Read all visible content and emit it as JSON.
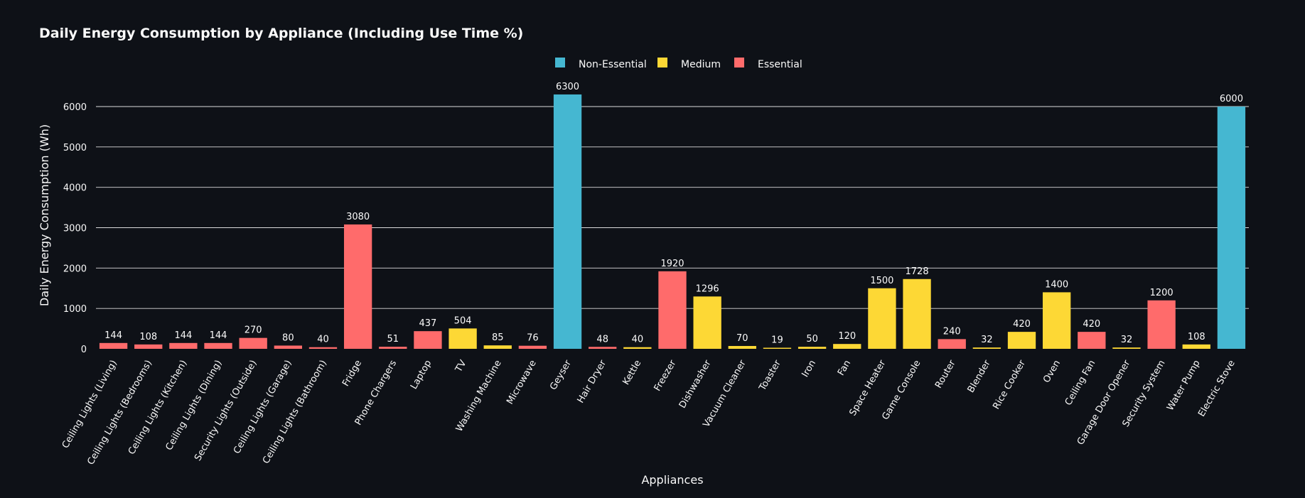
{
  "chart_data": {
    "type": "bar",
    "title": "Daily Energy Consumption by Appliance (Including Use Time %)",
    "xlabel": "Appliances",
    "ylabel": "Daily Energy Consumption (Wh)",
    "ylim": [
      0,
      6500
    ],
    "yticks": [
      0,
      1000,
      2000,
      3000,
      4000,
      5000,
      6000
    ],
    "grid": true,
    "legend_position": "top-center",
    "legend": [
      {
        "name": "Non-Essential",
        "color": "#45b7d1"
      },
      {
        "name": "Medium",
        "color": "#fdd835"
      },
      {
        "name": "Essential",
        "color": "#ff6b6b"
      }
    ],
    "categories": [
      "Ceiling Lights (Living)",
      "Ceiling Lights (Bedrooms)",
      "Ceiling Lights (Kitchen)",
      "Ceiling Lights (Dining)",
      "Security Lights (Outside)",
      "Ceiling Lights (Garage)",
      "Ceiling Lights (Bathroom)",
      "Fridge",
      "Phone Chargers",
      "Laptop",
      "TV",
      "Washing Machine",
      "Microwave",
      "Geyser",
      "Hair Dryer",
      "Kettle",
      "Freezer",
      "Dishwasher",
      "Vacuum Cleaner",
      "Toaster",
      "Iron",
      "Fan",
      "Space Heater",
      "Game Console",
      "Router",
      "Blender",
      "Rice Cooker",
      "Oven",
      "Ceiling Fan",
      "Garage Door Opener",
      "Security System",
      "Water Pump",
      "Electric Stove"
    ],
    "values": [
      144,
      108,
      144,
      144,
      270,
      80,
      40,
      3080,
      51,
      437,
      504,
      85,
      76,
      6300,
      48,
      40,
      1920,
      1296,
      70,
      19,
      50,
      120,
      1500,
      1728,
      240,
      32,
      420,
      1400,
      420,
      32,
      1200,
      108,
      6000
    ],
    "priority": [
      "Essential",
      "Essential",
      "Essential",
      "Essential",
      "Essential",
      "Essential",
      "Essential",
      "Essential",
      "Essential",
      "Essential",
      "Medium",
      "Medium",
      "Essential",
      "Non-Essential",
      "Essential",
      "Medium",
      "Essential",
      "Medium",
      "Medium",
      "Medium",
      "Medium",
      "Medium",
      "Medium",
      "Medium",
      "Essential",
      "Medium",
      "Medium",
      "Medium",
      "Essential",
      "Medium",
      "Essential",
      "Medium",
      "Non-Essential"
    ]
  }
}
